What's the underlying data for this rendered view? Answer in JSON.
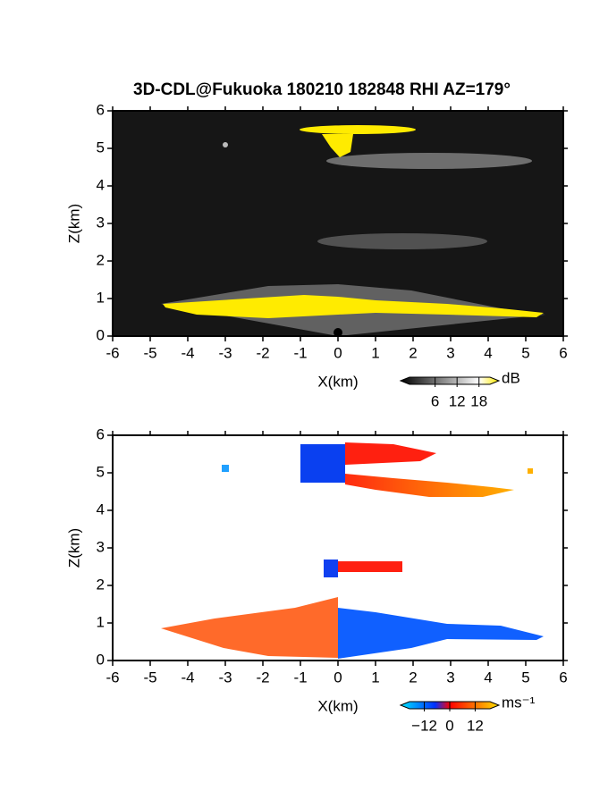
{
  "chart_data": [
    {
      "type": "image",
      "title": "3D-CDL@Fukuoka 180210 182848 RHI AZ=179°",
      "x_label": "X(km)",
      "y_label": "Z(km)",
      "xlim": [
        -6,
        6
      ],
      "ylim": [
        0,
        6
      ],
      "xticks": [
        -6,
        -5,
        -4,
        -3,
        -2,
        -1,
        0,
        1,
        2,
        3,
        4,
        5,
        6
      ],
      "yticks": [
        0,
        1,
        2,
        3,
        4,
        5,
        6
      ],
      "colorbar": {
        "clim": [
          -1,
          21
        ],
        "ticks": [
          6,
          12,
          18
        ],
        "unit": "dB"
      }
    },
    {
      "type": "image",
      "x_label": "X(km)",
      "y_label": "Z(km)",
      "xlim": [
        -6,
        6
      ],
      "ylim": [
        0,
        6
      ],
      "xticks": [
        -6,
        -5,
        -4,
        -3,
        -2,
        -1,
        0,
        1,
        2,
        3,
        4,
        5,
        6
      ],
      "yticks": [
        0,
        1,
        2,
        3,
        4,
        5,
        6
      ],
      "colorbar": {
        "clim": [
          -19,
          19
        ],
        "ticks": [
          {
            "value": -12,
            "label": "−12"
          },
          0,
          12
        ],
        "unit": "ms⁻¹"
      }
    }
  ]
}
